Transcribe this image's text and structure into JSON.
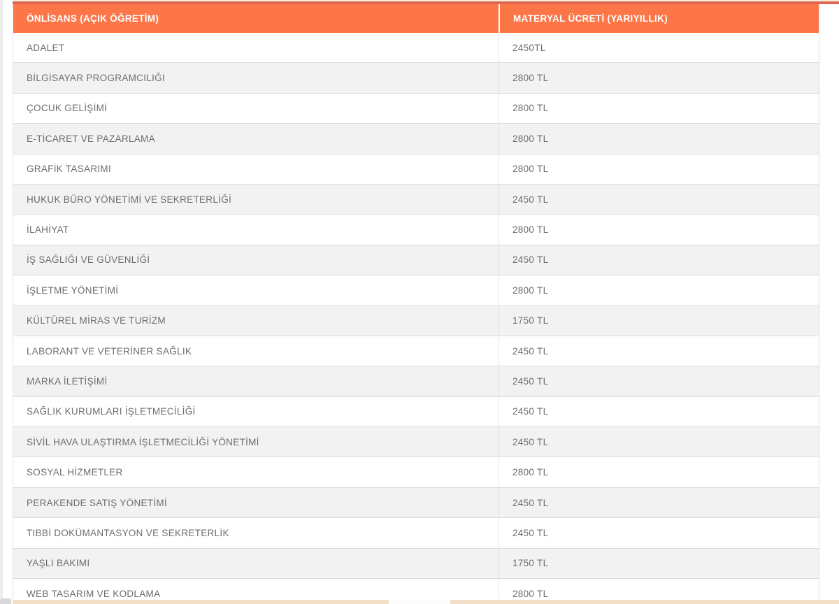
{
  "page": {
    "colors": {
      "header_orange": "#fc7648",
      "top_dark_strip": "#db6952",
      "top_cream_strip": "#f6ecda",
      "bottom_tan_strip": "#f3dfc8",
      "row_alt_gray": "#f2f2f2",
      "row_border": "#dcdcdc",
      "body_text": "#6d6d70",
      "header_text": "#ffffff"
    }
  },
  "table": {
    "columns": [
      {
        "label": "ÖNLİSANS (AÇIK ÖĞRETİM)"
      },
      {
        "label": "MATERYAL ÜCRETİ (YARIYILLIK)"
      }
    ],
    "rows": [
      {
        "program": "ADALET",
        "fee": "2450TL"
      },
      {
        "program": "BİLGİSAYAR PROGRAMCILIĞI",
        "fee": "2800 TL"
      },
      {
        "program": "ÇOCUK GELİŞİMİ",
        "fee": "2800 TL"
      },
      {
        "program": "E-TİCARET VE PAZARLAMA",
        "fee": "2800 TL"
      },
      {
        "program": "GRAFİK TASARIMI",
        "fee": "2800 TL"
      },
      {
        "program": "HUKUK BÜRO YÖNETİMİ VE SEKRETERLİĞİ",
        "fee": "2450 TL"
      },
      {
        "program": "İLAHİYAT",
        "fee": "2800 TL"
      },
      {
        "program": "İŞ SAĞLIĞI VE GÜVENLİĞİ",
        "fee": "2450 TL"
      },
      {
        "program": "İŞLETME YÖNETİMİ",
        "fee": "2800 TL"
      },
      {
        "program": "KÜLTÜREL MİRAS VE TURİZM",
        "fee": "1750 TL"
      },
      {
        "program": "LABORANT VE VETERİNER SAĞLIK",
        "fee": "2450 TL"
      },
      {
        "program": "MARKA İLETİŞİMİ",
        "fee": "2450 TL"
      },
      {
        "program": "SAĞLIK KURUMLARI İŞLETMECİLİĞİ",
        "fee": "2450 TL"
      },
      {
        "program": "SİVİL HAVA ULAŞTIRMA İŞLETMECİLİĞİ YÖNETİMİ",
        "fee": "2450 TL"
      },
      {
        "program": "SOSYAL HİZMETLER",
        "fee": "2800 TL"
      },
      {
        "program": "PERAKENDE SATIŞ YÖNETİMİ",
        "fee": "2450 TL"
      },
      {
        "program": "TIBBİ DOKÜMANTASYON VE SEKRETERLİK",
        "fee": "2450 TL"
      },
      {
        "program": "YAŞLI BAKIMI",
        "fee": "1750 TL"
      },
      {
        "program": "WEB TASARIM VE KODLAMA",
        "fee": "2800 TL"
      }
    ]
  }
}
